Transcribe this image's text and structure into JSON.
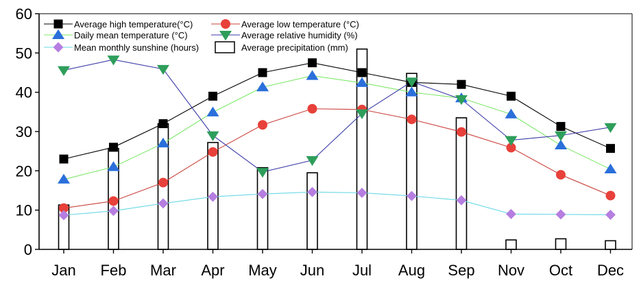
{
  "chart_data": {
    "type": "line",
    "title": "",
    "xlabel": "",
    "ylabel": "",
    "categories": [
      "Jan",
      "Feb",
      "Mar",
      "Apr",
      "May",
      "Jun",
      "Jul",
      "Aug",
      "Sep",
      "Nov",
      "Oct",
      "Dec"
    ],
    "ylim": [
      0,
      60
    ],
    "yticks": [
      0,
      10,
      20,
      30,
      40,
      50,
      60
    ],
    "grid": false,
    "legend_position": "top-left",
    "series": [
      {
        "name": "Average high temperature(°C)",
        "kind": "line",
        "marker": "square",
        "color": "#000000",
        "line_color": "#000000",
        "values": [
          23,
          26,
          32,
          39,
          45,
          47.5,
          45,
          42.5,
          42,
          39,
          31.3,
          25.7
        ]
      },
      {
        "name": "Average low temperature (°C)",
        "kind": "line",
        "marker": "circle",
        "color": "#e8403a",
        "line_color": "#c9403a",
        "values": [
          10.5,
          12.3,
          17,
          24.8,
          31.7,
          35.8,
          35.6,
          33.1,
          29.9,
          25.9,
          19,
          13.7
        ]
      },
      {
        "name": "Daily mean temperature (°C)",
        "kind": "line",
        "marker": "triangle-up",
        "color": "#2a6fdb",
        "line_color": "#7ee86a",
        "values": [
          17.8,
          21,
          27,
          34.9,
          41.3,
          44.2,
          42.4,
          40,
          38.5,
          34.4,
          26.5,
          20.4
        ]
      },
      {
        "name": "Average relative humidity (%)",
        "kind": "line",
        "marker": "triangle-down",
        "color": "#2e9e5b",
        "line_color": "#3a3aa8",
        "values": [
          45.6,
          48.3,
          45.9,
          29,
          19.7,
          22.7,
          34.6,
          42.7,
          38.2,
          27.8,
          29,
          31.1
        ]
      },
      {
        "name": "Mean monthly sunshine (hours)",
        "kind": "line",
        "marker": "diamond",
        "color": "#b57ee0",
        "line_color": "#6ad8e6",
        "values": [
          8.7,
          9.8,
          11.7,
          13.4,
          14.1,
          14.6,
          14.4,
          13.6,
          12.5,
          9,
          8.9,
          8.8
        ]
      },
      {
        "name": "Average precipitation (mm)",
        "kind": "bar",
        "marker": "open-rect",
        "color": "#000000",
        "values": [
          11.3,
          25.7,
          32,
          27.2,
          20.8,
          19.5,
          51,
          44.8,
          33.5,
          2.4,
          2.7,
          2.2
        ]
      }
    ]
  }
}
